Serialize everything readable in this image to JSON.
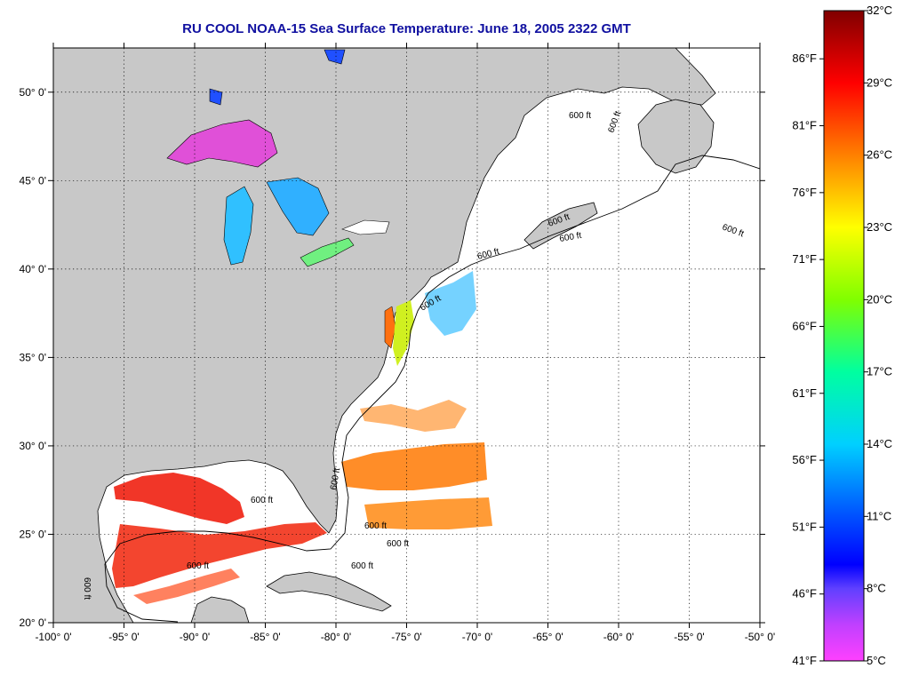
{
  "title": "RU COOL  NOAA-15  Sea Surface Temperature:  June 18, 2005 2322 GMT",
  "map": {
    "lon_range": [
      -100,
      -50
    ],
    "lat_range": [
      20,
      52.5
    ],
    "grid": "dotted",
    "land_color": "#c8c8c8",
    "water_color": "#ffffff",
    "contour_label": "600 ft",
    "lon_ticks": [
      {
        "value": -100,
        "label": "-100° 0'"
      },
      {
        "value": -95,
        "label": "-95° 0'"
      },
      {
        "value": -90,
        "label": "-90° 0'"
      },
      {
        "value": -85,
        "label": "-85° 0'"
      },
      {
        "value": -80,
        "label": "-80° 0'"
      },
      {
        "value": -75,
        "label": "-75° 0'"
      },
      {
        "value": -70,
        "label": "-70° 0'"
      },
      {
        "value": -65,
        "label": "-65° 0'"
      },
      {
        "value": -60,
        "label": "-60° 0'"
      },
      {
        "value": -55,
        "label": "-55° 0'"
      },
      {
        "value": -50,
        "label": "-50° 0'"
      }
    ],
    "lat_ticks": [
      {
        "value": 20,
        "label": "20° 0'"
      },
      {
        "value": 25,
        "label": "25° 0'"
      },
      {
        "value": 30,
        "label": "30° 0'"
      },
      {
        "value": 35,
        "label": "35° 0'"
      },
      {
        "value": 40,
        "label": "40° 0'"
      },
      {
        "value": 45,
        "label": "45° 0'"
      },
      {
        "value": 50,
        "label": "50° 0'"
      }
    ]
  },
  "colorbar": {
    "min_c": 5,
    "max_c": 32,
    "celsius": [
      {
        "value": 32,
        "label": "32°C"
      },
      {
        "value": 29,
        "label": "29°C"
      },
      {
        "value": 26,
        "label": "26°C"
      },
      {
        "value": 23,
        "label": "23°C"
      },
      {
        "value": 20,
        "label": "20°C"
      },
      {
        "value": 17,
        "label": "17°C"
      },
      {
        "value": 14,
        "label": "14°C"
      },
      {
        "value": 11,
        "label": "11°C"
      },
      {
        "value": 8,
        "label": "8°C"
      },
      {
        "value": 5,
        "label": "5°C"
      }
    ],
    "fahrenheit": [
      {
        "value": 86,
        "label": "86°F"
      },
      {
        "value": 81,
        "label": "81°F"
      },
      {
        "value": 76,
        "label": "76°F"
      },
      {
        "value": 71,
        "label": "71°F"
      },
      {
        "value": 66,
        "label": "66°F"
      },
      {
        "value": 61,
        "label": "61°F"
      },
      {
        "value": 56,
        "label": "56°F"
      },
      {
        "value": 51,
        "label": "51°F"
      },
      {
        "value": 46,
        "label": "46°F"
      },
      {
        "value": 41,
        "label": "41°F"
      }
    ],
    "stops": [
      {
        "c": 5,
        "color": "#ff40ff"
      },
      {
        "c": 6.5,
        "color": "#c040ff"
      },
      {
        "c": 8,
        "color": "#6040ff"
      },
      {
        "c": 9,
        "color": "#0000ff"
      },
      {
        "c": 11,
        "color": "#0050ff"
      },
      {
        "c": 14,
        "color": "#00d0ff"
      },
      {
        "c": 17,
        "color": "#00ffa0"
      },
      {
        "c": 20,
        "color": "#80ff00"
      },
      {
        "c": 23,
        "color": "#ffff00"
      },
      {
        "c": 26,
        "color": "#ff8000"
      },
      {
        "c": 29,
        "color": "#ff0000"
      },
      {
        "c": 32,
        "color": "#800000"
      }
    ]
  }
}
